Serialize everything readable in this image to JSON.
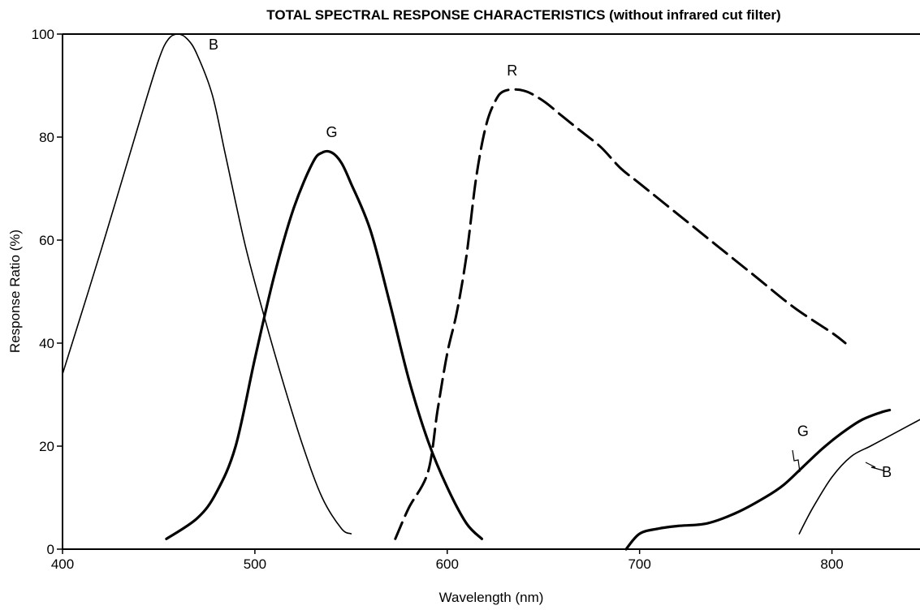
{
  "chart_data": {
    "type": "line",
    "title": "TOTAL SPECTRAL RESPONSE CHARACTERISTICS (without infrared cut filter)",
    "xlabel": "Wavelength (nm)",
    "ylabel": "Response Ratio (%)",
    "xlim": [
      400,
      850
    ],
    "ylim": [
      0,
      100
    ],
    "x_ticks": [
      400,
      500,
      600,
      700,
      800
    ],
    "y_ticks": [
      0,
      20,
      40,
      60,
      80,
      100
    ],
    "grid": false,
    "legend": "none",
    "series": [
      {
        "name": "B",
        "style": "solid-thin",
        "x": [
          400,
          420,
          440,
          450,
          455,
          460,
          465,
          470,
          478,
          485,
          495,
          505,
          515,
          525,
          535,
          545,
          550
        ],
        "y": [
          34,
          58,
          83,
          95,
          99,
          100,
          99,
          96,
          88,
          76,
          59,
          45,
          32,
          20,
          10,
          4,
          3
        ]
      },
      {
        "name": "G",
        "style": "solid-thick",
        "x": [
          454,
          470,
          480,
          490,
          500,
          510,
          520,
          530,
          535,
          540,
          545,
          550,
          560,
          570,
          580,
          590,
          600,
          610,
          618
        ],
        "y": [
          2,
          6,
          11,
          20,
          37,
          53,
          66,
          75,
          77,
          77,
          75,
          71,
          62,
          48,
          33,
          21,
          12,
          5,
          2
        ]
      },
      {
        "name": "R",
        "style": "dashed",
        "x": [
          573,
          580,
          590,
          595,
          600,
          605,
          610,
          615,
          620,
          625,
          630,
          640,
          650,
          660,
          670,
          680,
          690,
          700,
          720,
          740,
          760,
          780,
          800,
          807
        ],
        "y": [
          2,
          8,
          15,
          27,
          38,
          46,
          57,
          72,
          82,
          87,
          89,
          89,
          87,
          84,
          81,
          78,
          74,
          71,
          65,
          59,
          53,
          47,
          42,
          40
        ]
      },
      {
        "name": "G",
        "style": "solid-thick",
        "x": [
          693,
          700,
          710,
          720,
          735,
          750,
          765,
          775,
          785,
          795,
          805,
          815,
          825,
          830
        ],
        "y": [
          0,
          3,
          4,
          4.5,
          5,
          7,
          10,
          12.5,
          16,
          19.5,
          22.5,
          25,
          26.5,
          27
        ]
      },
      {
        "name": "B",
        "style": "solid-thin",
        "x": [
          783,
          790,
          800,
          810,
          820,
          830,
          840,
          850
        ],
        "y": [
          3,
          8,
          14,
          18,
          20,
          22,
          24,
          26
        ]
      }
    ],
    "annotations": [
      {
        "text": "B",
        "x": 476,
        "y": 97
      },
      {
        "text": "G",
        "x": 537,
        "y": 80
      },
      {
        "text": "R",
        "x": 631,
        "y": 92
      },
      {
        "text": "G",
        "x": 782,
        "y": 22
      },
      {
        "text": "B",
        "x": 826,
        "y": 14
      }
    ]
  }
}
